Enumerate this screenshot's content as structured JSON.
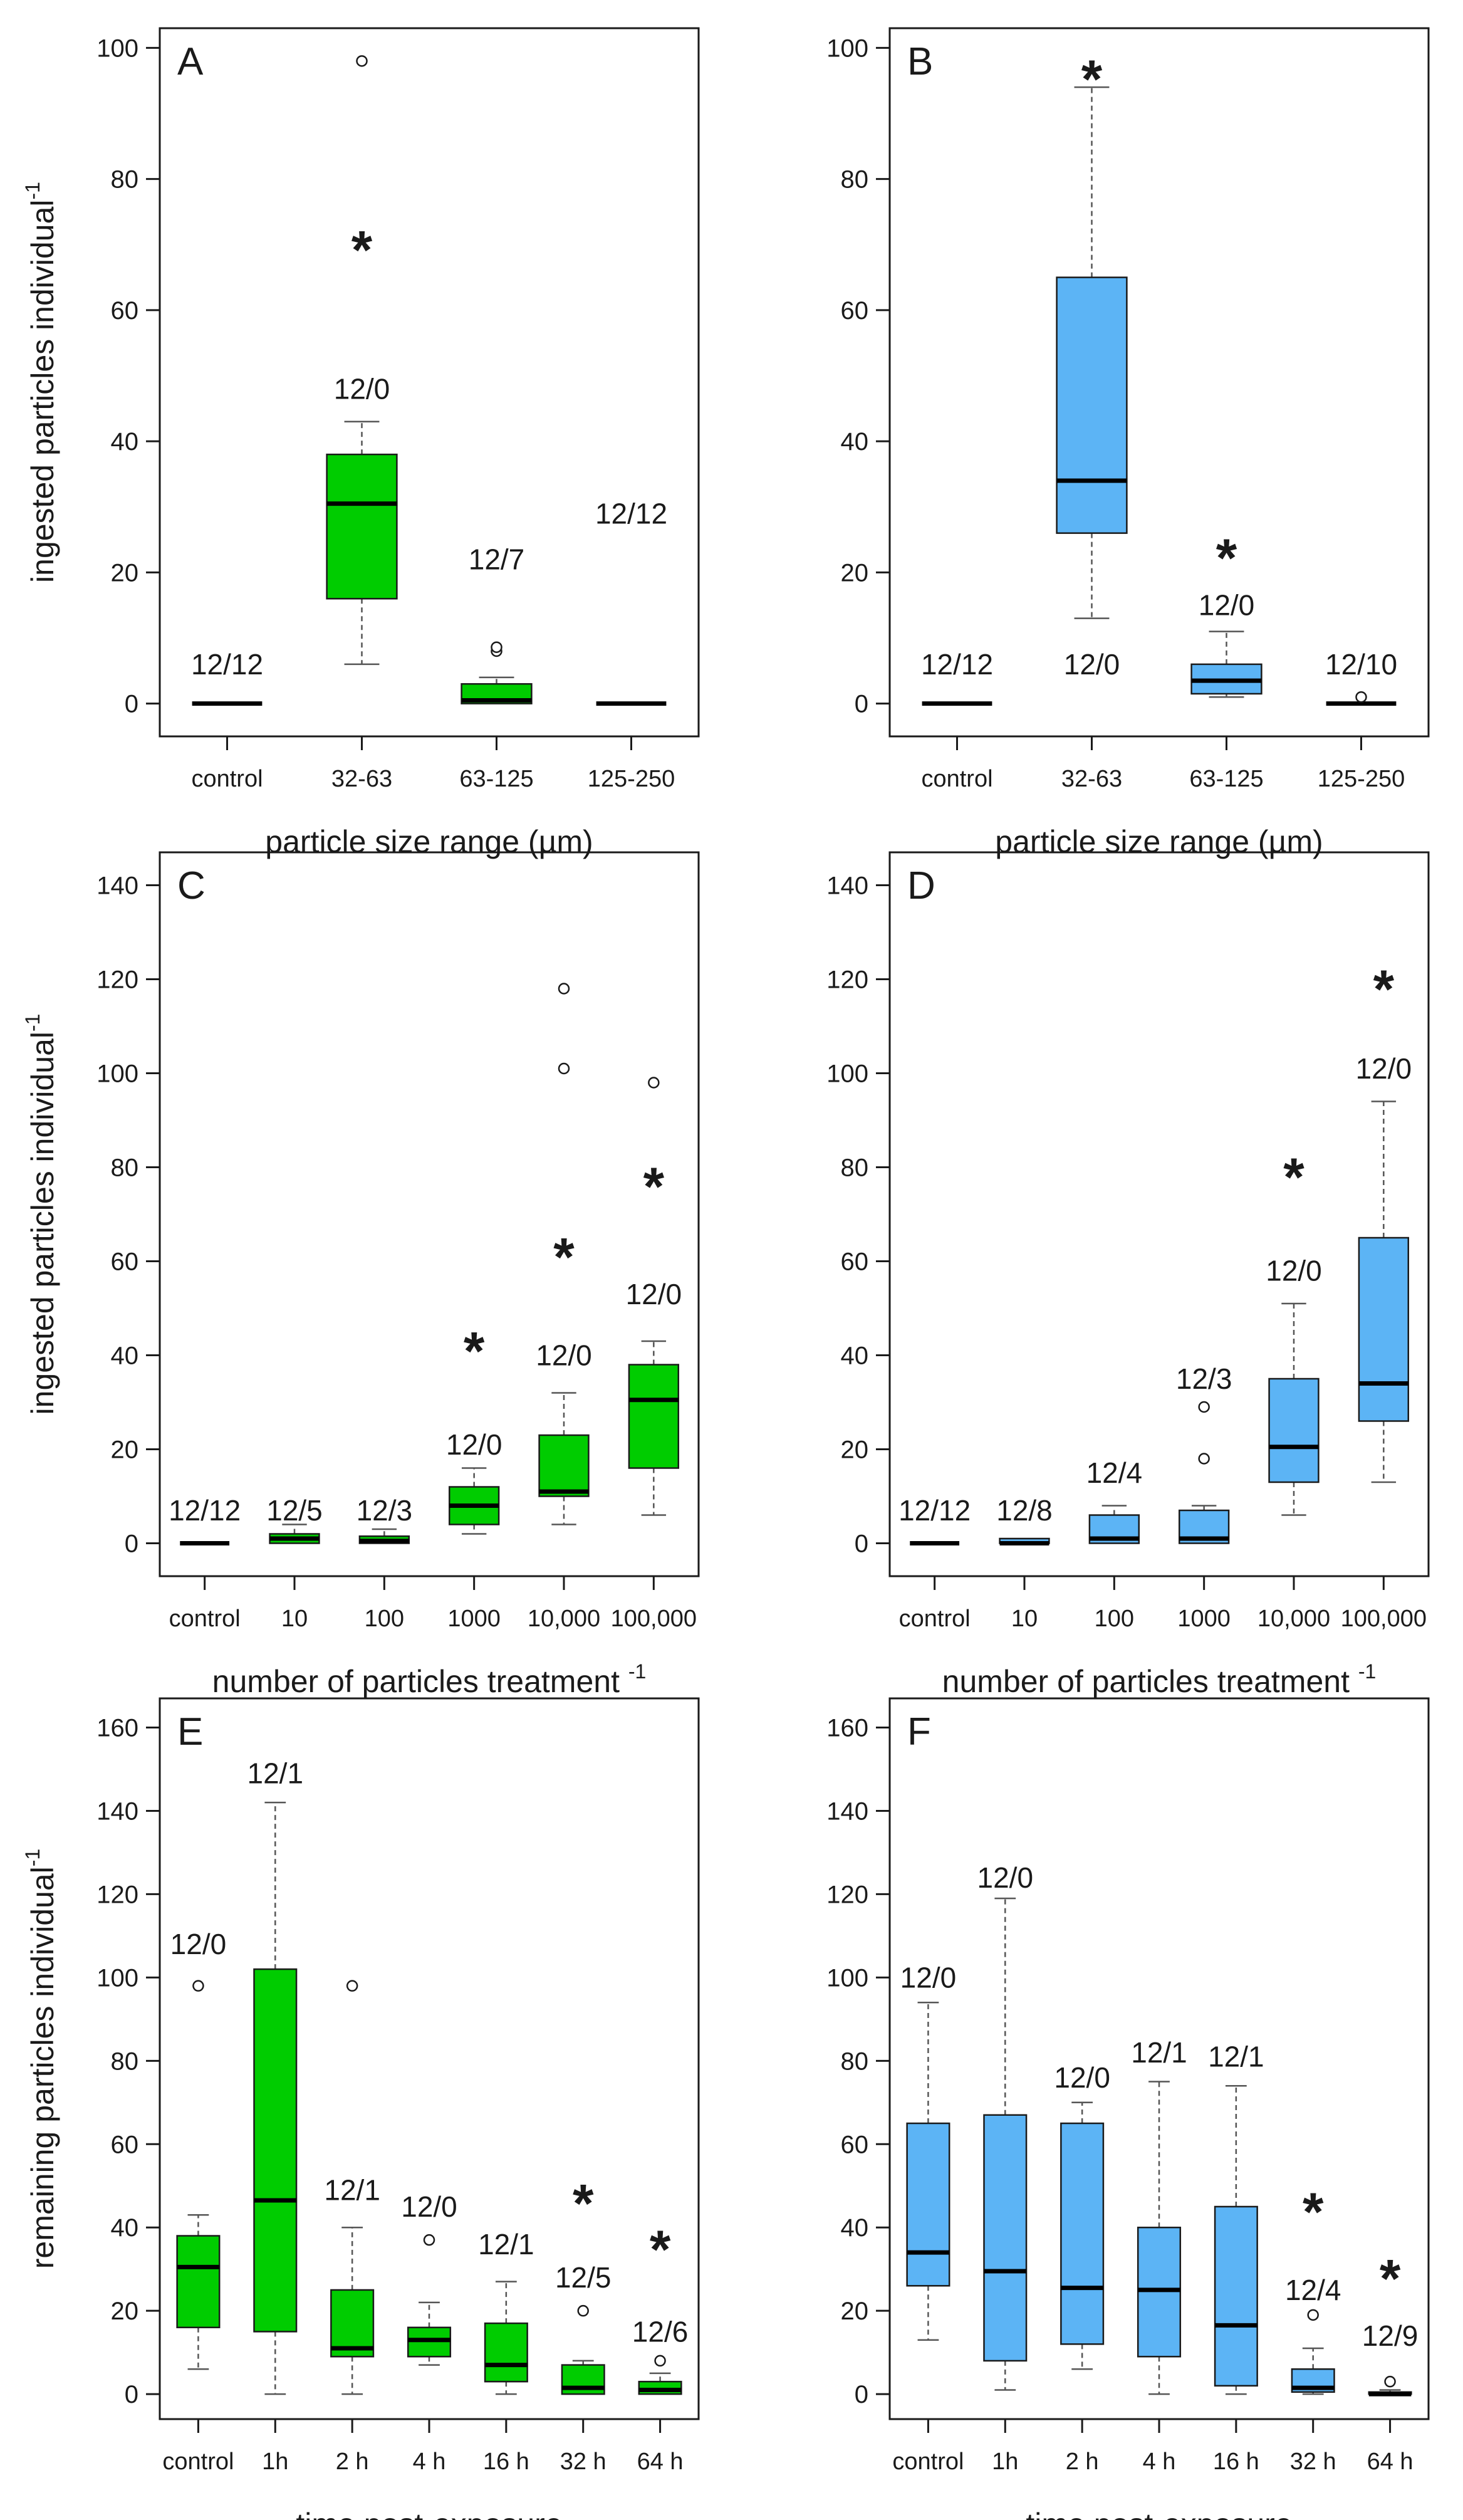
{
  "figure": {
    "colors": {
      "green": "#00cc00",
      "blue": "#5cb4f5",
      "ink": "#1a1a1a",
      "whisker": "#555555"
    }
  },
  "chart_data": [
    {
      "type": "box",
      "panel_label": "A",
      "color": "green",
      "ylabel": "ingested particles individual",
      "ylabel_sup": "-1",
      "xlabel": "particle size range (µm)",
      "ylim": [
        0,
        100
      ],
      "yticks": [
        "0",
        "20",
        "40",
        "60",
        "80",
        "100"
      ],
      "categories": [
        "control",
        "32-63",
        "63-125",
        "125-250"
      ],
      "boxes": [
        {
          "q1": 0,
          "median": 0,
          "q3": 0,
          "whisker_low": 0,
          "whisker_high": 0,
          "outliers": [],
          "count_label": "12/12",
          "count_y": 6,
          "sig": ""
        },
        {
          "q1": 16,
          "median": 30.5,
          "q3": 38,
          "whisker_low": 6,
          "whisker_high": 43,
          "outliers": [
            98
          ],
          "count_label": "12/0",
          "count_y": 48,
          "sig": "*",
          "sig_y": 70
        },
        {
          "q1": 0,
          "median": 0.5,
          "q3": 3,
          "whisker_low": 0,
          "whisker_high": 4,
          "outliers": [
            8,
            8.6
          ],
          "count_label": "12/7",
          "count_y": 22,
          "sig": ""
        },
        {
          "q1": 0,
          "median": 0,
          "q3": 0,
          "whisker_low": 0,
          "whisker_high": 0,
          "outliers": [],
          "count_label": "12/12",
          "count_y": 29,
          "sig": ""
        }
      ]
    },
    {
      "type": "box",
      "panel_label": "B",
      "color": "blue",
      "ylabel": "",
      "ylabel_sup": "",
      "xlabel": "particle size range (µm)",
      "ylim": [
        0,
        100
      ],
      "yticks": [
        "0",
        "20",
        "40",
        "60",
        "80",
        "100"
      ],
      "categories": [
        "control",
        "32-63",
        "63-125",
        "125-250"
      ],
      "boxes": [
        {
          "q1": 0,
          "median": 0,
          "q3": 0,
          "whisker_low": 0,
          "whisker_high": 0,
          "outliers": [],
          "count_label": "12/12",
          "count_y": 6,
          "sig": ""
        },
        {
          "q1": 26,
          "median": 34,
          "q3": 65,
          "whisker_low": 13,
          "whisker_high": 94,
          "outliers": [],
          "count_label": "12/0",
          "count_y": 6,
          "sig": "*",
          "sig_y": 96
        },
        {
          "q1": 1.5,
          "median": 3.5,
          "q3": 6,
          "whisker_low": 1,
          "whisker_high": 11,
          "outliers": [],
          "count_label": "12/0",
          "count_y": 15,
          "sig": "*",
          "sig_y": 23
        },
        {
          "q1": 0,
          "median": 0,
          "q3": 0,
          "whisker_low": 0,
          "whisker_high": 0,
          "outliers": [
            1
          ],
          "count_label": "12/10",
          "count_y": 6,
          "sig": ""
        }
      ]
    },
    {
      "type": "box",
      "panel_label": "C",
      "color": "green",
      "ylabel": "ingested particles individual",
      "ylabel_sup": "-1",
      "xlabel": "number of particles treatment",
      "xlabel_sup": "-1",
      "ylim": [
        0,
        140
      ],
      "yticks": [
        "0",
        "20",
        "40",
        "60",
        "80",
        "100",
        "120",
        "140"
      ],
      "categories": [
        "control",
        "10",
        "100",
        "1000",
        "10,000",
        "100,000"
      ],
      "boxes": [
        {
          "q1": 0,
          "median": 0,
          "q3": 0,
          "whisker_low": 0,
          "whisker_high": 0,
          "outliers": [],
          "count_label": "12/12",
          "count_y": 7,
          "sig": ""
        },
        {
          "q1": 0,
          "median": 1,
          "q3": 2,
          "whisker_low": 0,
          "whisker_high": 4,
          "outliers": [],
          "count_label": "12/5",
          "count_y": 7,
          "sig": ""
        },
        {
          "q1": 0,
          "median": 0.5,
          "q3": 1.5,
          "whisker_low": 0,
          "whisker_high": 3,
          "outliers": [],
          "count_label": "12/3",
          "count_y": 7,
          "sig": ""
        },
        {
          "q1": 4,
          "median": 8,
          "q3": 12,
          "whisker_low": 2,
          "whisker_high": 16,
          "outliers": [],
          "count_label": "12/0",
          "count_y": 21,
          "sig": "*",
          "sig_y": 42
        },
        {
          "q1": 10,
          "median": 11,
          "q3": 23,
          "whisker_low": 4,
          "whisker_high": 32,
          "outliers": [
            101,
            118
          ],
          "count_label": "12/0",
          "count_y": 40,
          "sig": "*",
          "sig_y": 62
        },
        {
          "q1": 16,
          "median": 30.5,
          "q3": 38,
          "whisker_low": 6,
          "whisker_high": 43,
          "outliers": [
            98
          ],
          "count_label": "12/0",
          "count_y": 53,
          "sig": "*",
          "sig_y": 77
        }
      ]
    },
    {
      "type": "box",
      "panel_label": "D",
      "color": "blue",
      "ylabel": "",
      "ylabel_sup": "",
      "xlabel": "number of particles treatment",
      "xlabel_sup": "-1",
      "ylim": [
        0,
        140
      ],
      "yticks": [
        "0",
        "20",
        "40",
        "60",
        "80",
        "100",
        "120",
        "140"
      ],
      "categories": [
        "control",
        "10",
        "100",
        "1000",
        "10,000",
        "100,000"
      ],
      "boxes": [
        {
          "q1": 0,
          "median": 0,
          "q3": 0,
          "whisker_low": 0,
          "whisker_high": 0,
          "outliers": [],
          "count_label": "12/12",
          "count_y": 7,
          "sig": ""
        },
        {
          "q1": 0,
          "median": 0,
          "q3": 1,
          "whisker_low": 0,
          "whisker_high": 1,
          "outliers": [],
          "count_label": "12/8",
          "count_y": 7,
          "sig": ""
        },
        {
          "q1": 0,
          "median": 1,
          "q3": 6,
          "whisker_low": 0,
          "whisker_high": 8,
          "outliers": [],
          "count_label": "12/4",
          "count_y": 15,
          "sig": ""
        },
        {
          "q1": 0,
          "median": 1,
          "q3": 7,
          "whisker_low": 0,
          "whisker_high": 8,
          "outliers": [
            18,
            29
          ],
          "count_label": "12/3",
          "count_y": 35,
          "sig": ""
        },
        {
          "q1": 13,
          "median": 20.5,
          "q3": 35,
          "whisker_low": 6,
          "whisker_high": 51,
          "outliers": [],
          "count_label": "12/0",
          "count_y": 58,
          "sig": "*",
          "sig_y": 79
        },
        {
          "q1": 26,
          "median": 34,
          "q3": 65,
          "whisker_low": 13,
          "whisker_high": 94,
          "outliers": [],
          "count_label": "12/0",
          "count_y": 101,
          "sig": "*",
          "sig_y": 119
        }
      ]
    },
    {
      "type": "box",
      "panel_label": "E",
      "color": "green",
      "ylabel": "remaining particles individual",
      "ylabel_sup": "-1",
      "xlabel": "time post-exposure",
      "ylim": [
        0,
        160
      ],
      "yticks": [
        "0",
        "20",
        "40",
        "60",
        "80",
        "100",
        "120",
        "140",
        "160"
      ],
      "categories": [
        "control",
        "1h",
        "2 h",
        "4 h",
        "16 h",
        "32 h",
        "64 h"
      ],
      "boxes": [
        {
          "q1": 16,
          "median": 30.5,
          "q3": 38,
          "whisker_low": 6,
          "whisker_high": 43,
          "outliers": [
            98
          ],
          "count_label": "12/0",
          "count_y": 108,
          "sig": ""
        },
        {
          "q1": 15,
          "median": 46.5,
          "q3": 102,
          "whisker_low": 0,
          "whisker_high": 142,
          "outliers": [],
          "count_label": "12/1",
          "count_y": 149,
          "sig": ""
        },
        {
          "q1": 9,
          "median": 11,
          "q3": 25,
          "whisker_low": 0,
          "whisker_high": 40,
          "outliers": [
            98
          ],
          "count_label": "12/1",
          "count_y": 49,
          "sig": ""
        },
        {
          "q1": 9,
          "median": 13,
          "q3": 16,
          "whisker_low": 7,
          "whisker_high": 22,
          "outliers": [
            37
          ],
          "count_label": "12/0",
          "count_y": 45,
          "sig": ""
        },
        {
          "q1": 3,
          "median": 7,
          "q3": 17,
          "whisker_low": 0,
          "whisker_high": 27,
          "outliers": [],
          "count_label": "12/1",
          "count_y": 36,
          "sig": ""
        },
        {
          "q1": 0,
          "median": 1.5,
          "q3": 7,
          "whisker_low": 0,
          "whisker_high": 8,
          "outliers": [
            20
          ],
          "count_label": "12/5",
          "count_y": 28,
          "sig": "*",
          "sig_y": 47
        },
        {
          "q1": 0,
          "median": 1,
          "q3": 3,
          "whisker_low": 0,
          "whisker_high": 5,
          "outliers": [
            8
          ],
          "count_label": "12/6",
          "count_y": 15,
          "sig": "*",
          "sig_y": 36
        }
      ]
    },
    {
      "type": "box",
      "panel_label": "F",
      "color": "blue",
      "ylabel": "",
      "ylabel_sup": "",
      "xlabel": "time post-exposure",
      "ylim": [
        0,
        160
      ],
      "yticks": [
        "0",
        "20",
        "40",
        "60",
        "80",
        "100",
        "120",
        "140",
        "160"
      ],
      "categories": [
        "control",
        "1h",
        "2 h",
        "4 h",
        "16 h",
        "32 h",
        "64 h"
      ],
      "boxes": [
        {
          "q1": 26,
          "median": 34,
          "q3": 65,
          "whisker_low": 13,
          "whisker_high": 94,
          "outliers": [],
          "count_label": "12/0",
          "count_y": 100,
          "sig": ""
        },
        {
          "q1": 8,
          "median": 29.5,
          "q3": 67,
          "whisker_low": 1,
          "whisker_high": 119,
          "outliers": [],
          "count_label": "12/0",
          "count_y": 124,
          "sig": ""
        },
        {
          "q1": 12,
          "median": 25.5,
          "q3": 65,
          "whisker_low": 6,
          "whisker_high": 70,
          "outliers": [],
          "count_label": "12/0",
          "count_y": 76,
          "sig": ""
        },
        {
          "q1": 9,
          "median": 25,
          "q3": 40,
          "whisker_low": 0,
          "whisker_high": 75,
          "outliers": [],
          "count_label": "12/1",
          "count_y": 82,
          "sig": ""
        },
        {
          "q1": 2,
          "median": 16.5,
          "q3": 45,
          "whisker_low": 0,
          "whisker_high": 74,
          "outliers": [],
          "count_label": "12/1",
          "count_y": 81,
          "sig": ""
        },
        {
          "q1": 0.5,
          "median": 1.5,
          "q3": 6,
          "whisker_low": 0,
          "whisker_high": 11,
          "outliers": [
            19
          ],
          "count_label": "12/4",
          "count_y": 25,
          "sig": "*",
          "sig_y": 45
        },
        {
          "q1": 0,
          "median": 0,
          "q3": 0.5,
          "whisker_low": 0,
          "whisker_high": 1,
          "outliers": [
            3
          ],
          "count_label": "12/9",
          "count_y": 14,
          "sig": "*",
          "sig_y": 29
        }
      ]
    }
  ]
}
